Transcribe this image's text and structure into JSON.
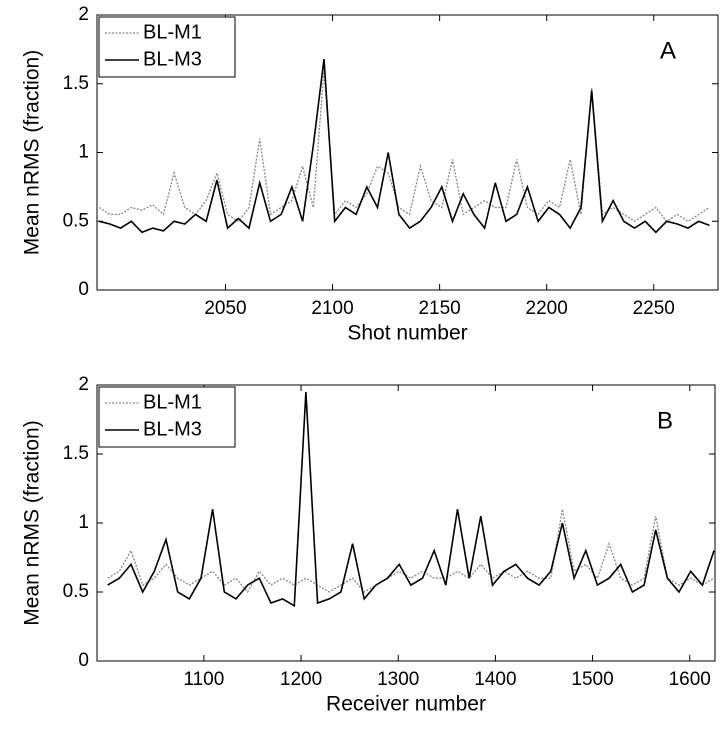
{
  "chart_data": [
    {
      "type": "line",
      "annotation": "A",
      "xlabel": "Shot number",
      "ylabel": "Mean nRMS (fraction)",
      "xlim": [
        1990,
        2280
      ],
      "xticks": [
        2050,
        2100,
        2150,
        2200,
        2250
      ],
      "ylim": [
        0,
        2
      ],
      "yticks": [
        0,
        0.5,
        1,
        1.5,
        2
      ],
      "legend": "upper left",
      "x": [
        1991,
        1996,
        2001,
        2006,
        2011,
        2016,
        2021,
        2026,
        2031,
        2036,
        2041,
        2046,
        2051,
        2056,
        2061,
        2066,
        2071,
        2076,
        2081,
        2086,
        2091,
        2096,
        2101,
        2106,
        2111,
        2116,
        2121,
        2126,
        2131,
        2136,
        2141,
        2146,
        2151,
        2156,
        2161,
        2166,
        2171,
        2176,
        2181,
        2186,
        2191,
        2196,
        2201,
        2206,
        2211,
        2216,
        2221,
        2226,
        2231,
        2236,
        2241,
        2246,
        2251,
        2256,
        2261,
        2266,
        2271,
        2276
      ],
      "series": [
        {
          "name": "BL-M1",
          "color": "#888888",
          "style": "dotted",
          "values": [
            0.6,
            0.55,
            0.55,
            0.6,
            0.58,
            0.62,
            0.55,
            0.85,
            0.6,
            0.55,
            0.65,
            0.85,
            0.55,
            0.5,
            0.6,
            1.1,
            0.55,
            0.6,
            0.65,
            0.9,
            0.6,
            1.6,
            0.55,
            0.65,
            0.6,
            0.7,
            0.9,
            0.85,
            0.6,
            0.55,
            0.9,
            0.65,
            0.6,
            0.95,
            0.55,
            0.6,
            0.65,
            0.6,
            0.6,
            0.95,
            0.6,
            0.55,
            0.65,
            0.6,
            0.95,
            0.55,
            1.47,
            0.55,
            0.6,
            0.55,
            0.5,
            0.55,
            0.6,
            0.5,
            0.55,
            0.5,
            0.55,
            0.6
          ]
        },
        {
          "name": "BL-M3",
          "color": "#000000",
          "style": "solid",
          "values": [
            0.5,
            0.48,
            0.45,
            0.5,
            0.42,
            0.45,
            0.43,
            0.5,
            0.48,
            0.55,
            0.5,
            0.8,
            0.45,
            0.52,
            0.45,
            0.78,
            0.5,
            0.55,
            0.75,
            0.5,
            1.05,
            1.68,
            0.5,
            0.6,
            0.55,
            0.75,
            0.6,
            1.0,
            0.55,
            0.45,
            0.5,
            0.6,
            0.75,
            0.5,
            0.7,
            0.55,
            0.45,
            0.78,
            0.5,
            0.55,
            0.75,
            0.5,
            0.6,
            0.55,
            0.45,
            0.6,
            1.45,
            0.5,
            0.65,
            0.5,
            0.45,
            0.5,
            0.42,
            0.5,
            0.48,
            0.45,
            0.5,
            0.47
          ]
        }
      ]
    },
    {
      "type": "line",
      "annotation": "B",
      "xlabel": "Receiver number",
      "ylabel": "Mean nRMS (fraction)",
      "xlim": [
        990,
        1626
      ],
      "xticks": [
        1100,
        1200,
        1300,
        1400,
        1500,
        1600
      ],
      "ylim": [
        0,
        2
      ],
      "yticks": [
        0,
        0.5,
        1,
        1.5,
        2
      ],
      "legend": "upper left",
      "x": [
        1001,
        1013,
        1025,
        1037,
        1049,
        1061,
        1073,
        1085,
        1097,
        1109,
        1121,
        1133,
        1145,
        1157,
        1169,
        1181,
        1193,
        1205,
        1217,
        1229,
        1241,
        1253,
        1265,
        1277,
        1289,
        1301,
        1313,
        1325,
        1337,
        1349,
        1361,
        1373,
        1385,
        1397,
        1409,
        1421,
        1433,
        1445,
        1457,
        1469,
        1481,
        1493,
        1505,
        1517,
        1529,
        1541,
        1553,
        1565,
        1577,
        1589,
        1601,
        1613,
        1625
      ],
      "series": [
        {
          "name": "BL-M1",
          "color": "#888888",
          "style": "dotted",
          "values": [
            0.6,
            0.65,
            0.8,
            0.55,
            0.6,
            0.7,
            0.6,
            0.55,
            0.6,
            0.65,
            0.55,
            0.6,
            0.5,
            0.65,
            0.55,
            0.6,
            0.55,
            0.6,
            0.55,
            0.5,
            0.55,
            0.6,
            0.5,
            0.55,
            0.6,
            0.65,
            0.6,
            0.65,
            0.6,
            0.6,
            0.65,
            0.6,
            0.7,
            0.6,
            0.65,
            0.6,
            0.65,
            0.6,
            0.6,
            1.1,
            0.65,
            0.7,
            0.6,
            0.85,
            0.6,
            0.55,
            0.6,
            1.05,
            0.6,
            0.55,
            0.6,
            0.55,
            0.6
          ]
        },
        {
          "name": "BL-M3",
          "color": "#000000",
          "style": "solid",
          "values": [
            0.55,
            0.6,
            0.7,
            0.5,
            0.65,
            0.88,
            0.5,
            0.45,
            0.6,
            1.1,
            0.5,
            0.45,
            0.55,
            0.6,
            0.42,
            0.45,
            0.4,
            1.95,
            0.42,
            0.45,
            0.5,
            0.85,
            0.45,
            0.55,
            0.6,
            0.7,
            0.55,
            0.6,
            0.8,
            0.55,
            1.1,
            0.6,
            1.05,
            0.55,
            0.65,
            0.7,
            0.6,
            0.55,
            0.65,
            1.0,
            0.6,
            0.8,
            0.55,
            0.6,
            0.7,
            0.5,
            0.55,
            0.95,
            0.6,
            0.5,
            0.65,
            0.55,
            0.8
          ]
        }
      ]
    }
  ]
}
